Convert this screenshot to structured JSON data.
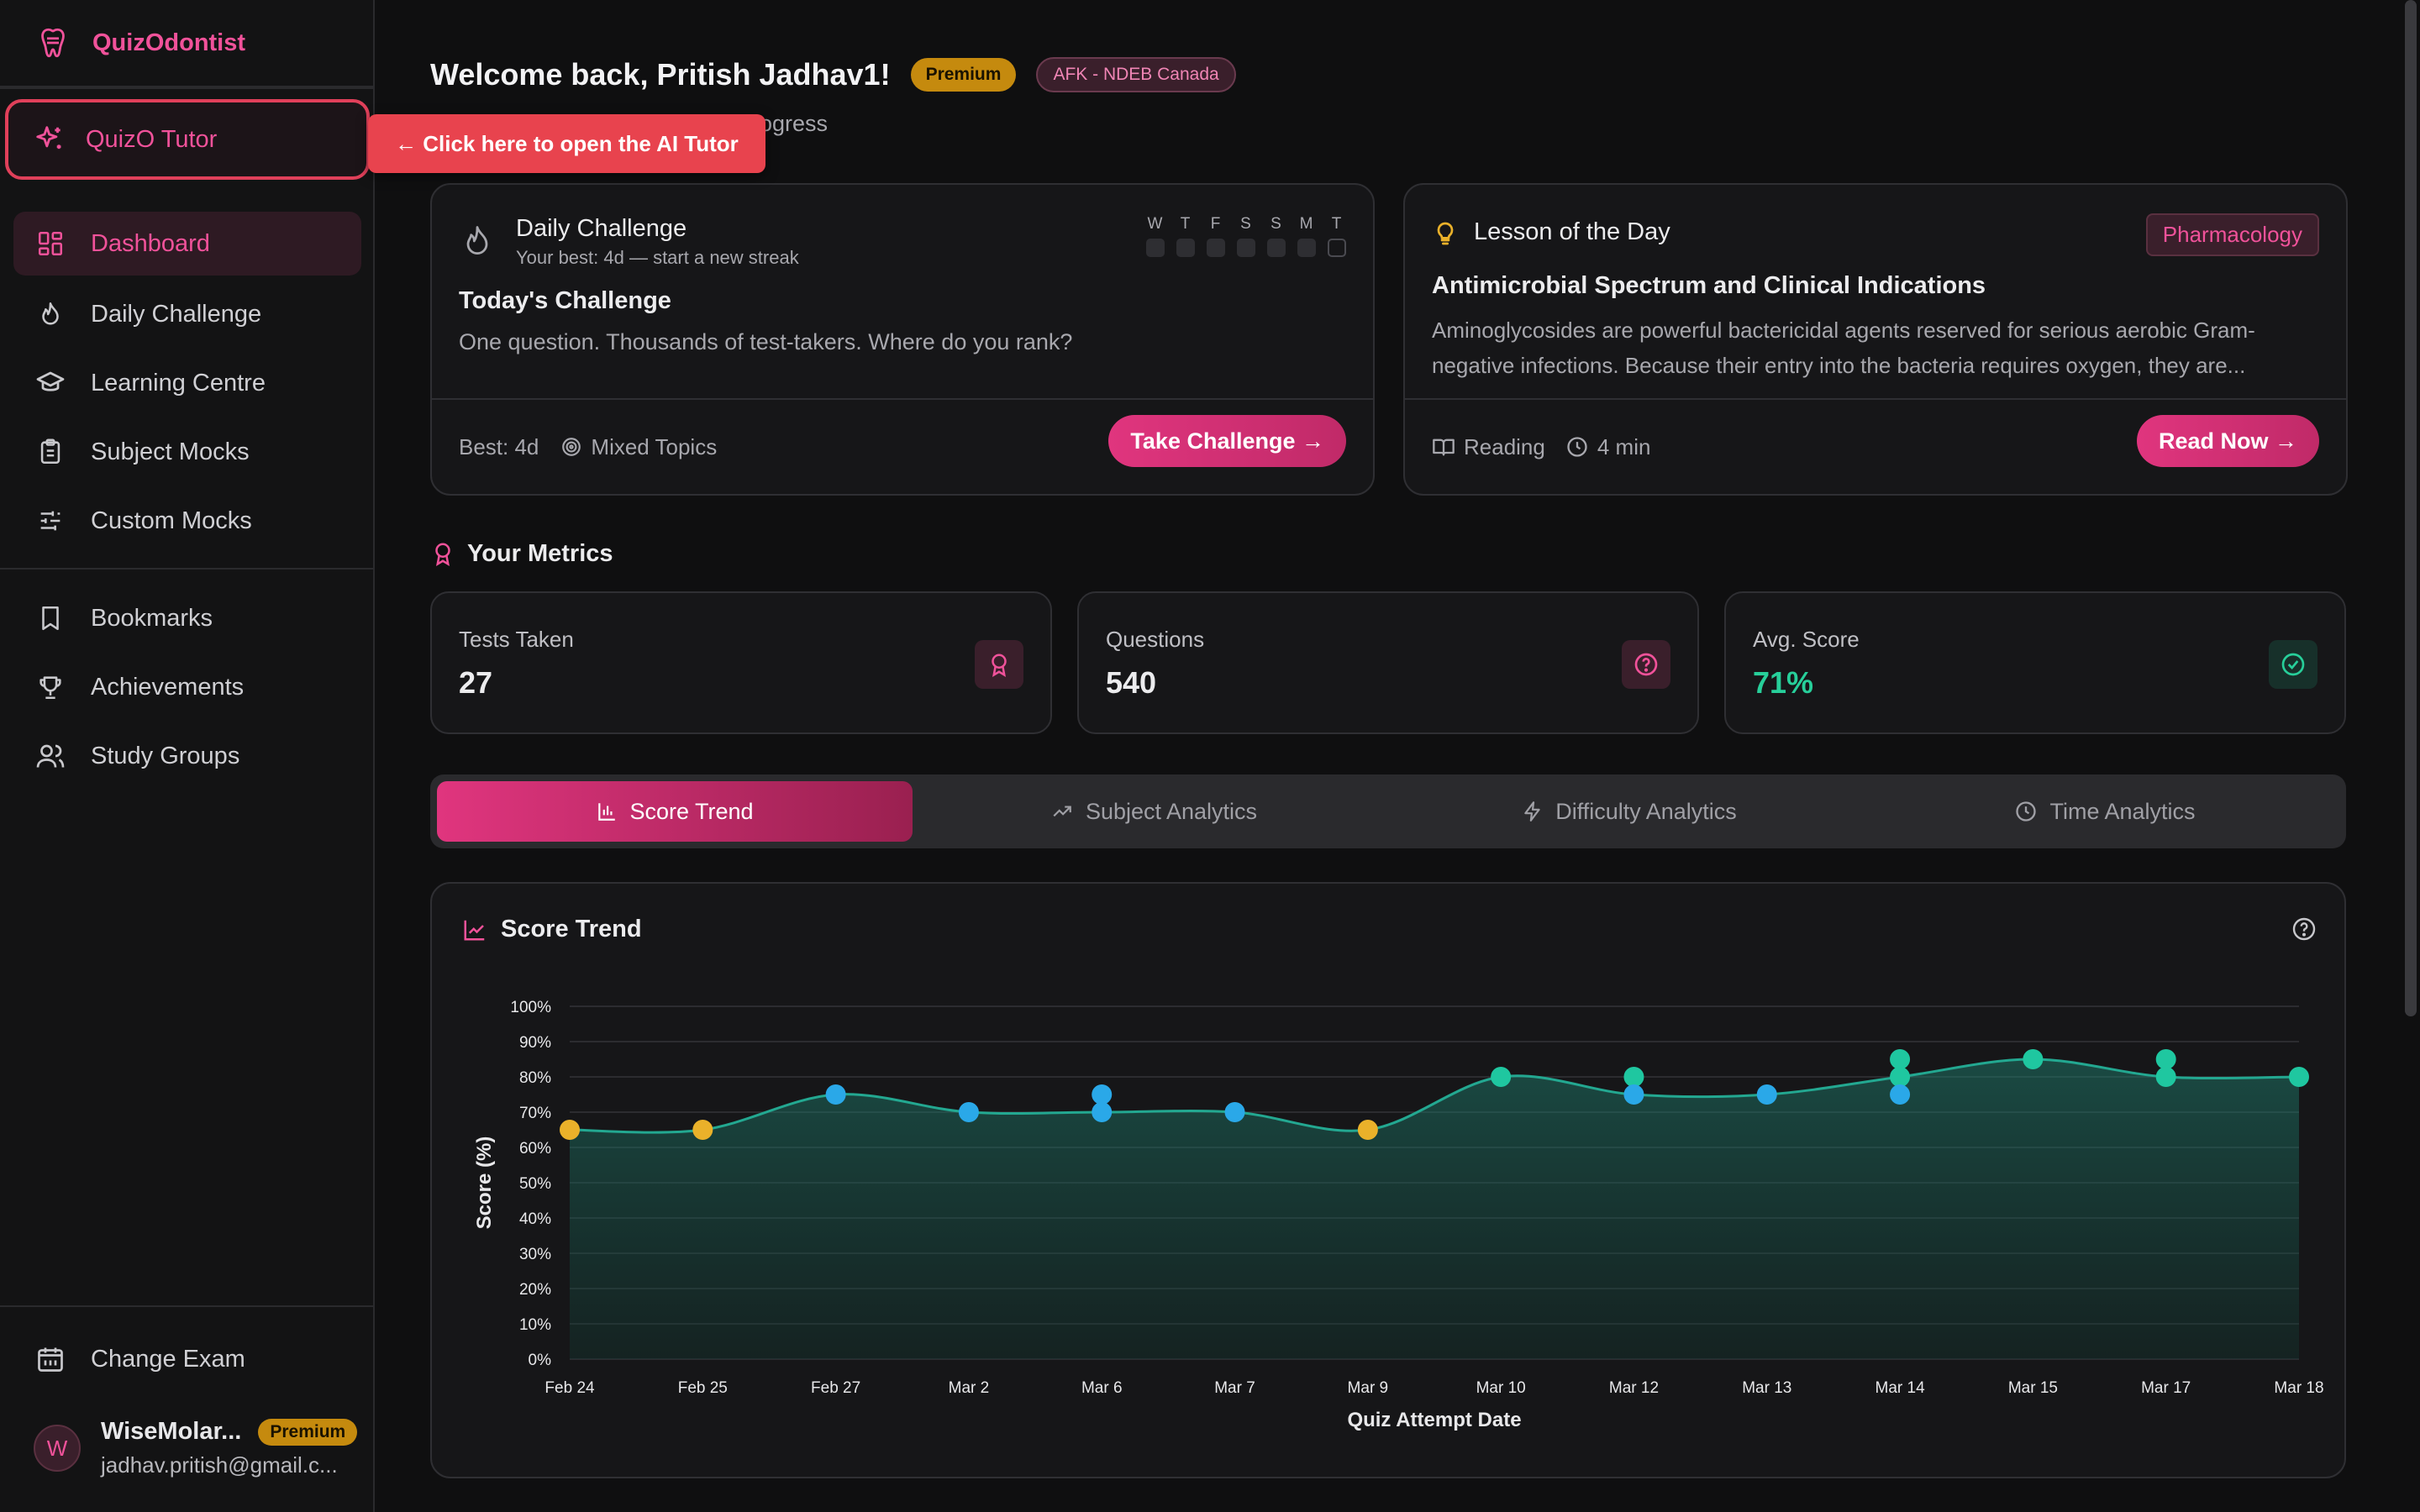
{
  "brand": {
    "name": "QuizOdontist"
  },
  "tutor": {
    "label": "QuizO Tutor",
    "callout": "← Click here to open the AI Tutor"
  },
  "nav": {
    "items": [
      {
        "label": "Dashboard",
        "icon": "dashboard-icon",
        "active": true
      },
      {
        "label": "Daily Challenge",
        "icon": "flame-icon"
      },
      {
        "label": "Learning Centre",
        "icon": "graduation-cap-icon"
      },
      {
        "label": "Subject Mocks",
        "icon": "clipboard-icon"
      },
      {
        "label": "Custom Mocks",
        "icon": "sliders-icon"
      }
    ],
    "secondary": [
      {
        "label": "Bookmarks",
        "icon": "bookmark-icon"
      },
      {
        "label": "Achievements",
        "icon": "trophy-icon"
      },
      {
        "label": "Study Groups",
        "icon": "users-icon"
      }
    ],
    "change_exam": "Change Exam"
  },
  "user": {
    "initial": "W",
    "name": "WiseMolar...",
    "badge": "Premium",
    "email": "jadhav.pritish@gmail.c..."
  },
  "header": {
    "welcome": "Welcome back, Pritish Jadhav1!",
    "badge_premium": "Premium",
    "badge_exam": "AFK - NDEB Canada",
    "subtitle": "progress"
  },
  "daily_challenge": {
    "title": "Daily Challenge",
    "subtitle": "Your best: 4d — start a new streak",
    "days": [
      "W",
      "T",
      "F",
      "S",
      "S",
      "M",
      "T"
    ],
    "heading": "Today's Challenge",
    "description": "One question. Thousands of test-takers. Where do you rank?",
    "best": "Best: 4d",
    "topics": "Mixed Topics",
    "button": "Take Challenge →"
  },
  "lesson": {
    "title": "Lesson of the Day",
    "tag": "Pharmacology",
    "heading": "Antimicrobial Spectrum and Clinical Indications",
    "text_line1": "Aminoglycosides are powerful bactericidal agents reserved for serious aerobic Gram-",
    "text_line2": "negative infections. Because their entry into the bacteria requires oxygen, they are...",
    "type": "Reading",
    "duration": "4 min",
    "button": "Read Now →"
  },
  "metrics": {
    "title": "Your Metrics",
    "tests_label": "Tests Taken",
    "tests_value": "27",
    "questions_label": "Questions",
    "questions_value": "540",
    "avg_label": "Avg. Score",
    "avg_value": "71%"
  },
  "tabs": [
    "Score Trend",
    "Subject Analytics",
    "Difficulty Analytics",
    "Time Analytics"
  ],
  "chart_title": "Score Trend",
  "colors": {
    "accent": "#e0357e",
    "teal": "#1fc7a0",
    "blue": "#2aa8e8",
    "yellow": "#eab12a",
    "line": "#23a891"
  },
  "chart_data": {
    "type": "line",
    "xlabel": "Quiz Attempt Date",
    "ylabel": "Score (%)",
    "ylim": [
      0,
      100
    ],
    "yticks": [
      "0%",
      "10%",
      "20%",
      "30%",
      "40%",
      "50%",
      "60%",
      "70%",
      "80%",
      "90%",
      "100%"
    ],
    "categories": [
      "Feb 24",
      "Feb 25",
      "Feb 27",
      "Mar 2",
      "Mar 6",
      "Mar 7",
      "Mar 9",
      "Mar 10",
      "Mar 12",
      "Mar 13",
      "Mar 14",
      "Mar 15",
      "Mar 17",
      "Mar 18"
    ],
    "trend": [
      65,
      65,
      75,
      70,
      70,
      70,
      65,
      80,
      75,
      75,
      80,
      85,
      80,
      80
    ],
    "points": [
      {
        "x": "Feb 24",
        "y": 65,
        "level": "low"
      },
      {
        "x": "Feb 25",
        "y": 65,
        "level": "low"
      },
      {
        "x": "Feb 27",
        "y": 75,
        "level": "mid"
      },
      {
        "x": "Mar 2",
        "y": 70,
        "level": "mid"
      },
      {
        "x": "Mar 6",
        "y": 75,
        "level": "mid"
      },
      {
        "x": "Mar 6",
        "y": 70,
        "level": "mid"
      },
      {
        "x": "Mar 7",
        "y": 70,
        "level": "mid"
      },
      {
        "x": "Mar 9",
        "y": 65,
        "level": "low"
      },
      {
        "x": "Mar 10",
        "y": 80,
        "level": "high"
      },
      {
        "x": "Mar 12",
        "y": 80,
        "level": "high"
      },
      {
        "x": "Mar 12",
        "y": 75,
        "level": "mid"
      },
      {
        "x": "Mar 13",
        "y": 75,
        "level": "mid"
      },
      {
        "x": "Mar 14",
        "y": 85,
        "level": "high"
      },
      {
        "x": "Mar 14",
        "y": 80,
        "level": "high"
      },
      {
        "x": "Mar 14",
        "y": 75,
        "level": "mid"
      },
      {
        "x": "Mar 15",
        "y": 85,
        "level": "high"
      },
      {
        "x": "Mar 17",
        "y": 85,
        "level": "high"
      },
      {
        "x": "Mar 17",
        "y": 80,
        "level": "high"
      },
      {
        "x": "Mar 18",
        "y": 80,
        "level": "high"
      }
    ],
    "grid": true
  }
}
